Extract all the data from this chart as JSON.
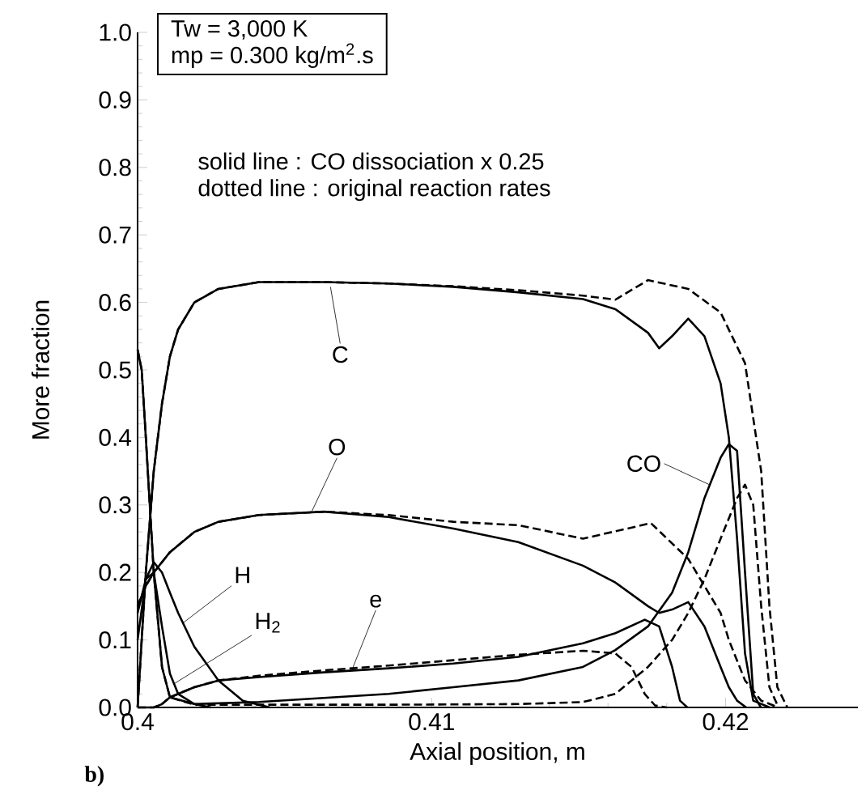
{
  "chart_data": {
    "type": "line",
    "xlabel": "Axial position,    m",
    "ylabel": "More fraction",
    "xlim": [
      0.4,
      0.4245
    ],
    "ylim": [
      0,
      1
    ],
    "xticks": [
      0.4,
      0.41,
      0.42
    ],
    "yticks": [
      {
        "value": 0,
        "label": "0.0"
      },
      {
        "value": 0.1,
        "label": "0.1"
      },
      {
        "value": 0.2,
        "label": "0.2"
      },
      {
        "value": 0.3,
        "label": "0.3"
      },
      {
        "value": 0.4,
        "label": "0.4"
      },
      {
        "value": 0.5,
        "label": "0.5"
      },
      {
        "value": 0.6,
        "label": "0.6"
      },
      {
        "value": 0.7,
        "label": "0.7"
      },
      {
        "value": 0.8,
        "label": "0.8"
      },
      {
        "value": 0.9,
        "label": "0.9"
      },
      {
        "value": 1,
        "label": "1.0"
      }
    ],
    "annotations": [
      "Tw = 3,000 K",
      "mp = 0.300 kg/m$^{2}$.s",
      "solid line    : CO dissociation x 0.25",
      "dotted line : original reaction rates",
      "b)",
      {
        "text": "C",
        "x": 0.40656,
        "y": 0.623
      },
      {
        "text": "O",
        "x": 0.4059,
        "y": 0.288
      },
      {
        "text": "H",
        "x": 0.40154,
        "y": 0.125
      },
      {
        "text": "H$_{2}$",
        "x": 0.40124,
        "y": 0.035
      },
      {
        "text": "e",
        "x": 0.40733,
        "y": 0.06
      },
      {
        "text": "CO",
        "x": 0.41945,
        "y": 0.33
      }
    ],
    "series": [
      {
        "color": "#000000",
        "line_style": "solid",
        "x": [
          0.4,
          0.40028,
          0.40055,
          0.40083,
          0.4011,
          0.40138,
          0.40193,
          0.40275,
          0.40413,
          0.40634,
          0.40854,
          0.41074,
          0.41295,
          0.41515,
          0.41625,
          0.41736,
          0.41774,
          0.41818,
          0.41873,
          0.41928,
          0.41983,
          0.42011,
          0.42039,
          0.42066,
          0.42094,
          0.4215
        ],
        "values": [
          0,
          0.2,
          0.35,
          0.45,
          0.52,
          0.56,
          0.6,
          0.62,
          0.63,
          0.63,
          0.628,
          0.623,
          0.615,
          0.605,
          0.59,
          0.555,
          0.532,
          0.55,
          0.576,
          0.55,
          0.48,
          0.4,
          0.25,
          0.08,
          0.01,
          0
        ]
      },
      {
        "color": "#000000",
        "line_style": "dashed",
        "x": [
          0.4,
          0.40028,
          0.40055,
          0.40083,
          0.4011,
          0.40138,
          0.40193,
          0.40275,
          0.40413,
          0.40634,
          0.40854,
          0.41074,
          0.41295,
          0.41515,
          0.41625,
          0.41736,
          0.41873,
          0.41983,
          0.42066,
          0.42121,
          0.42149,
          0.42176,
          0.4221
        ],
        "values": [
          0,
          0.2,
          0.35,
          0.45,
          0.52,
          0.56,
          0.6,
          0.62,
          0.63,
          0.63,
          0.628,
          0.624,
          0.618,
          0.61,
          0.604,
          0.633,
          0.62,
          0.585,
          0.51,
          0.35,
          0.15,
          0.03,
          0
        ]
      },
      {
        "color": "#000000",
        "line_style": "solid",
        "x": [
          0.4,
          0.40028,
          0.40055,
          0.4011,
          0.40193,
          0.40275,
          0.40413,
          0.40634,
          0.40854,
          0.41074,
          0.41295,
          0.41515,
          0.41625,
          0.41736,
          0.41774,
          0.41818,
          0.41873,
          0.41928,
          0.41983,
          0.42011,
          0.42039,
          0.4207
        ],
        "values": [
          0.15,
          0.18,
          0.2,
          0.23,
          0.26,
          0.275,
          0.285,
          0.29,
          0.282,
          0.265,
          0.245,
          0.21,
          0.185,
          0.15,
          0.14,
          0.145,
          0.156,
          0.12,
          0.06,
          0.03,
          0.01,
          0
        ]
      },
      {
        "color": "#000000",
        "line_style": "dashed",
        "x": [
          0.4,
          0.40028,
          0.40055,
          0.4011,
          0.40193,
          0.40275,
          0.40413,
          0.40634,
          0.40854,
          0.41074,
          0.41295,
          0.41515,
          0.41746,
          0.41873,
          0.41983,
          0.42011,
          0.42066,
          0.42121,
          0.4218
        ],
        "values": [
          0.15,
          0.18,
          0.2,
          0.23,
          0.26,
          0.275,
          0.285,
          0.29,
          0.285,
          0.275,
          0.27,
          0.25,
          0.273,
          0.22,
          0.14,
          0.1,
          0.04,
          0.01,
          0
        ]
      },
      {
        "color": "#000000",
        "line_style": "solid",
        "x": [
          0.4,
          0.40014,
          0.40028,
          0.40055,
          0.40083,
          0.4011,
          0.40193,
          0.40413,
          0.40854,
          0.41074,
          0.41295,
          0.41515,
          0.41625,
          0.41736,
          0.41818,
          0.41873,
          0.41928,
          0.41983,
          0.42011,
          0.42039,
          0.42066,
          0.42094,
          0.4212
        ],
        "values": [
          0.53,
          0.5,
          0.4,
          0.2,
          0.06,
          0.015,
          0.005,
          0.008,
          0.02,
          0.03,
          0.04,
          0.06,
          0.085,
          0.12,
          0.17,
          0.23,
          0.31,
          0.37,
          0.39,
          0.38,
          0.2,
          0.02,
          0
        ]
      },
      {
        "color": "#000000",
        "line_style": "dashed",
        "x": [
          0.4,
          0.40014,
          0.40028,
          0.40055,
          0.40083,
          0.4011,
          0.40193,
          0.40854,
          0.41295,
          0.41515,
          0.41625,
          0.41736,
          0.41818,
          0.41873,
          0.41928,
          0.41983,
          0.42039,
          0.42066,
          0.42094,
          0.42121,
          0.42149,
          0.4218
        ],
        "values": [
          0.53,
          0.5,
          0.4,
          0.2,
          0.06,
          0.015,
          0.004,
          0.004,
          0.005,
          0.008,
          0.02,
          0.06,
          0.1,
          0.14,
          0.19,
          0.25,
          0.31,
          0.33,
          0.3,
          0.15,
          0.03,
          0
        ]
      },
      {
        "color": "#000000",
        "line_style": "solid",
        "x": [
          0.4,
          0.40055,
          0.40083,
          0.4011,
          0.40193,
          0.40275,
          0.40413,
          0.40634,
          0.40854,
          0.41074,
          0.41295,
          0.41515,
          0.41625,
          0.41725,
          0.41774,
          0.41818,
          0.41845,
          0.4187
        ],
        "values": [
          0,
          0,
          0.005,
          0.015,
          0.03,
          0.04,
          0.045,
          0.052,
          0.058,
          0.065,
          0.075,
          0.095,
          0.11,
          0.13,
          0.12,
          0.06,
          0.01,
          0
        ]
      },
      {
        "color": "#000000",
        "line_style": "dashed",
        "x": [
          0.4,
          0.40055,
          0.40083,
          0.4011,
          0.40193,
          0.40275,
          0.40413,
          0.40634,
          0.40854,
          0.41074,
          0.41295,
          0.41515,
          0.41625,
          0.4168,
          0.41725,
          0.4176,
          0.418
        ],
        "values": [
          0,
          0,
          0.005,
          0.015,
          0.03,
          0.04,
          0.047,
          0.055,
          0.062,
          0.07,
          0.078,
          0.084,
          0.08,
          0.06,
          0.02,
          0.003,
          0
        ]
      },
      {
        "color": "#000000",
        "line_style": "solid",
        "x": [
          0.4,
          0.40028,
          0.40055,
          0.40083,
          0.4011,
          0.40138,
          0.40193,
          0.40275,
          0.40358,
          0.4045
        ],
        "values": [
          0.14,
          0.19,
          0.215,
          0.2,
          0.17,
          0.14,
          0.09,
          0.04,
          0.01,
          0
        ]
      },
      {
        "color": "#000000",
        "line_style": "solid",
        "x": [
          0.4,
          0.40028,
          0.40055,
          0.40083,
          0.4011,
          0.40138,
          0.40193,
          0.4025
        ],
        "values": [
          0.1,
          0.19,
          0.2,
          0.12,
          0.05,
          0.02,
          0.005,
          0
        ]
      }
    ]
  }
}
